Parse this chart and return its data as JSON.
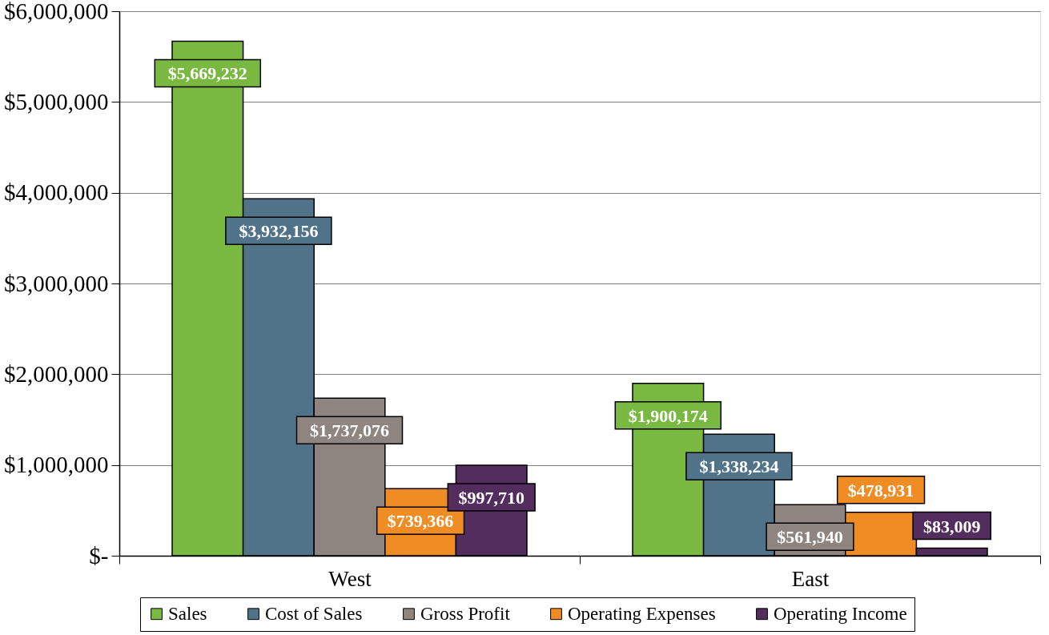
{
  "chart_data": {
    "type": "bar",
    "categories": [
      "West",
      "East"
    ],
    "series": [
      {
        "name": "Sales",
        "color": "#7ab941",
        "values": [
          5669232,
          1900174
        ],
        "value_labels": [
          "$5,669,232",
          "$1,900,174"
        ]
      },
      {
        "name": "Cost of Sales",
        "color": "#517389",
        "values": [
          3932156,
          1338234
        ],
        "value_labels": [
          "$3,932,156",
          "$1,338,234"
        ]
      },
      {
        "name": "Gross Profit",
        "color": "#8e8580",
        "values": [
          1737076,
          561940
        ],
        "value_labels": [
          "$1,737,076",
          "$561,940"
        ]
      },
      {
        "name": "Operating Expenses",
        "color": "#f08c24",
        "values": [
          739366,
          478931
        ],
        "value_labels": [
          "$739,366",
          "$478,931"
        ]
      },
      {
        "name": "Operating Income",
        "color": "#522d5e",
        "values": [
          997710,
          83009
        ],
        "value_labels": [
          "$997,710",
          "$83,009"
        ]
      }
    ],
    "ylim": [
      0,
      6000000
    ],
    "yticks": [
      {
        "value": 0,
        "label": "$-"
      },
      {
        "value": 1000000,
        "label": "$1,000,000"
      },
      {
        "value": 2000000,
        "label": "$2,000,000"
      },
      {
        "value": 3000000,
        "label": "$3,000,000"
      },
      {
        "value": 4000000,
        "label": "$4,000,000"
      },
      {
        "value": 5000000,
        "label": "$5,000,000"
      },
      {
        "value": 6000000,
        "label": "$6,000,000"
      }
    ],
    "grid": "y",
    "legend": "bottom"
  }
}
